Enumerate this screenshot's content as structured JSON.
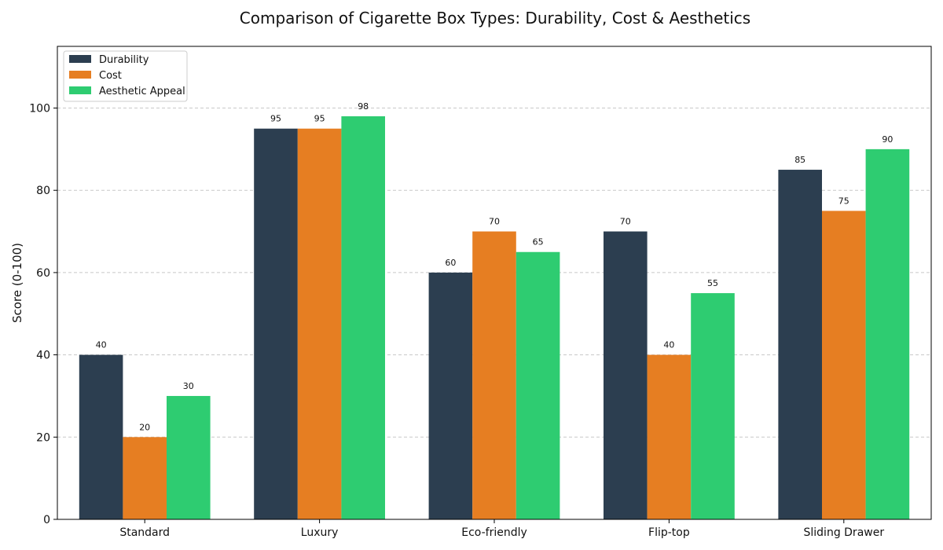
{
  "chart_data": {
    "type": "bar",
    "title": "Comparison of Cigarette Box Types: Durability, Cost & Aesthetics",
    "xlabel": "",
    "ylabel": "Score (0-100)",
    "ylim": [
      0,
      115
    ],
    "yticks": [
      0,
      20,
      40,
      60,
      80,
      100
    ],
    "grid": true,
    "legend_position": "top-left",
    "categories": [
      "Standard",
      "Luxury",
      "Eco-friendly",
      "Flip-top",
      "Sliding Drawer"
    ],
    "series": [
      {
        "name": "Durability",
        "color": "#2c3e50",
        "values": [
          40,
          95,
          60,
          70,
          85
        ]
      },
      {
        "name": "Cost",
        "color": "#e67e22",
        "values": [
          20,
          95,
          70,
          40,
          75
        ]
      },
      {
        "name": "Aesthetic Appeal",
        "color": "#2ecc71",
        "values": [
          30,
          98,
          65,
          55,
          90
        ]
      }
    ]
  }
}
